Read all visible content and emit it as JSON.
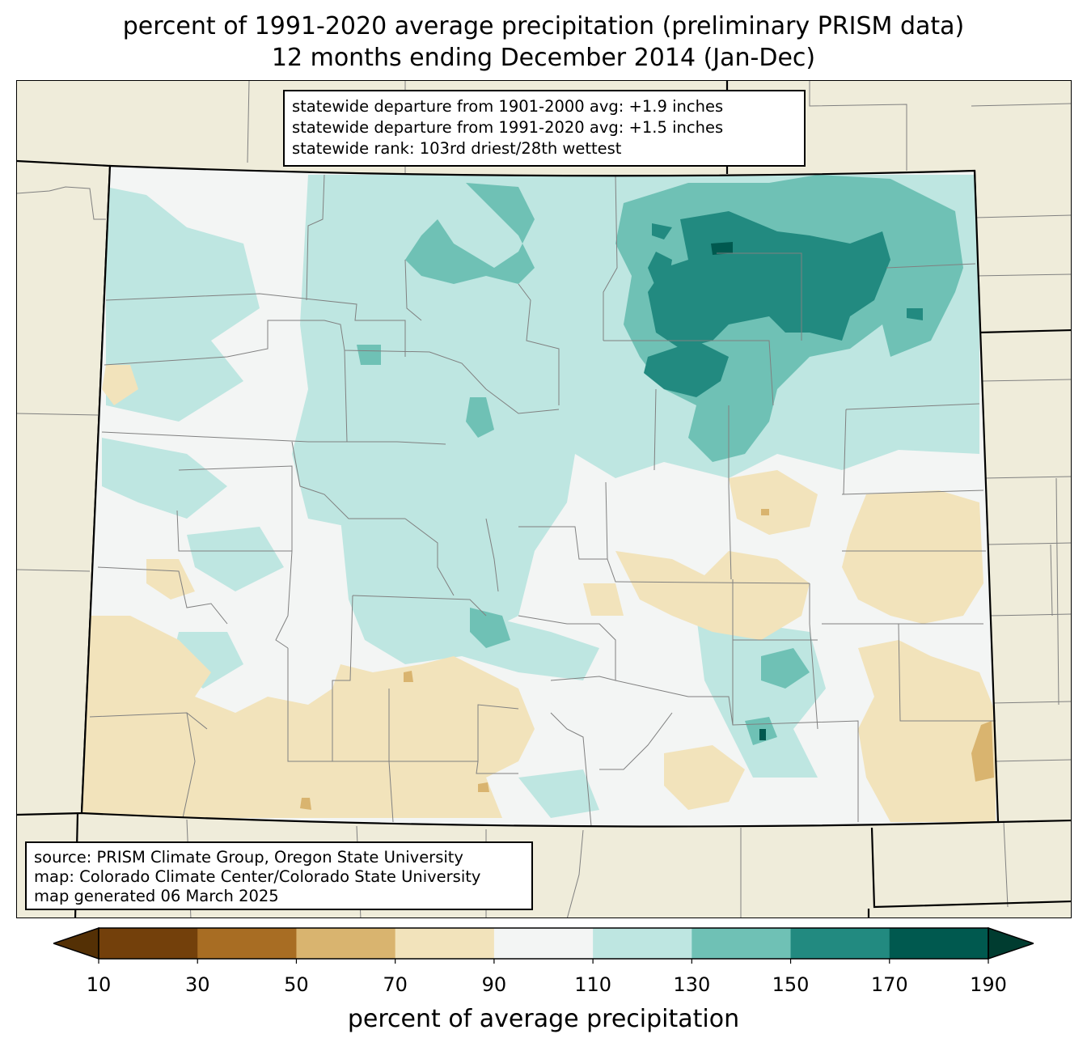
{
  "title": {
    "line1": "percent of 1991-2020 average precipitation (preliminary PRISM data)",
    "line2": "12 months ending December 2014 (Jan-Dec)"
  },
  "stats_box": {
    "line1": "statewide departure from 1901-2000 avg: +1.9 inches",
    "line2": "statewide departure from 1991-2020 avg: +1.5 inches",
    "line3": "statewide rank: 103rd driest/28th wettest"
  },
  "source_box": {
    "line1": "source: PRISM Climate Group, Oregon State University",
    "line2": "map: Colorado Climate Center/Colorado State University",
    "line3": "map generated 06 March 2025"
  },
  "colorbar": {
    "label": "percent of average precipitation",
    "ticks": [
      "10",
      "30",
      "50",
      "70",
      "90",
      "110",
      "130",
      "150",
      "170",
      "190"
    ],
    "under_color": "#543005",
    "over_color": "#003c30",
    "colors": [
      "#8c510a",
      "#bf812d",
      "#dfc27d",
      "#f6e8c3",
      "#f5f5f5",
      "#c7eae5",
      "#80cdc1",
      "#35978f",
      "#01665e"
    ],
    "bin_colors": [
      "#73400b",
      "#a86d23",
      "#d9b46f",
      "#f2e3bb",
      "#f3f5f4",
      "#bee6e1",
      "#6fc1b5",
      "#228a80",
      "#00594f"
    ]
  },
  "map_colors": {
    "background": "#efecda",
    "state_border": "#000000",
    "county_border": "#808080"
  }
}
